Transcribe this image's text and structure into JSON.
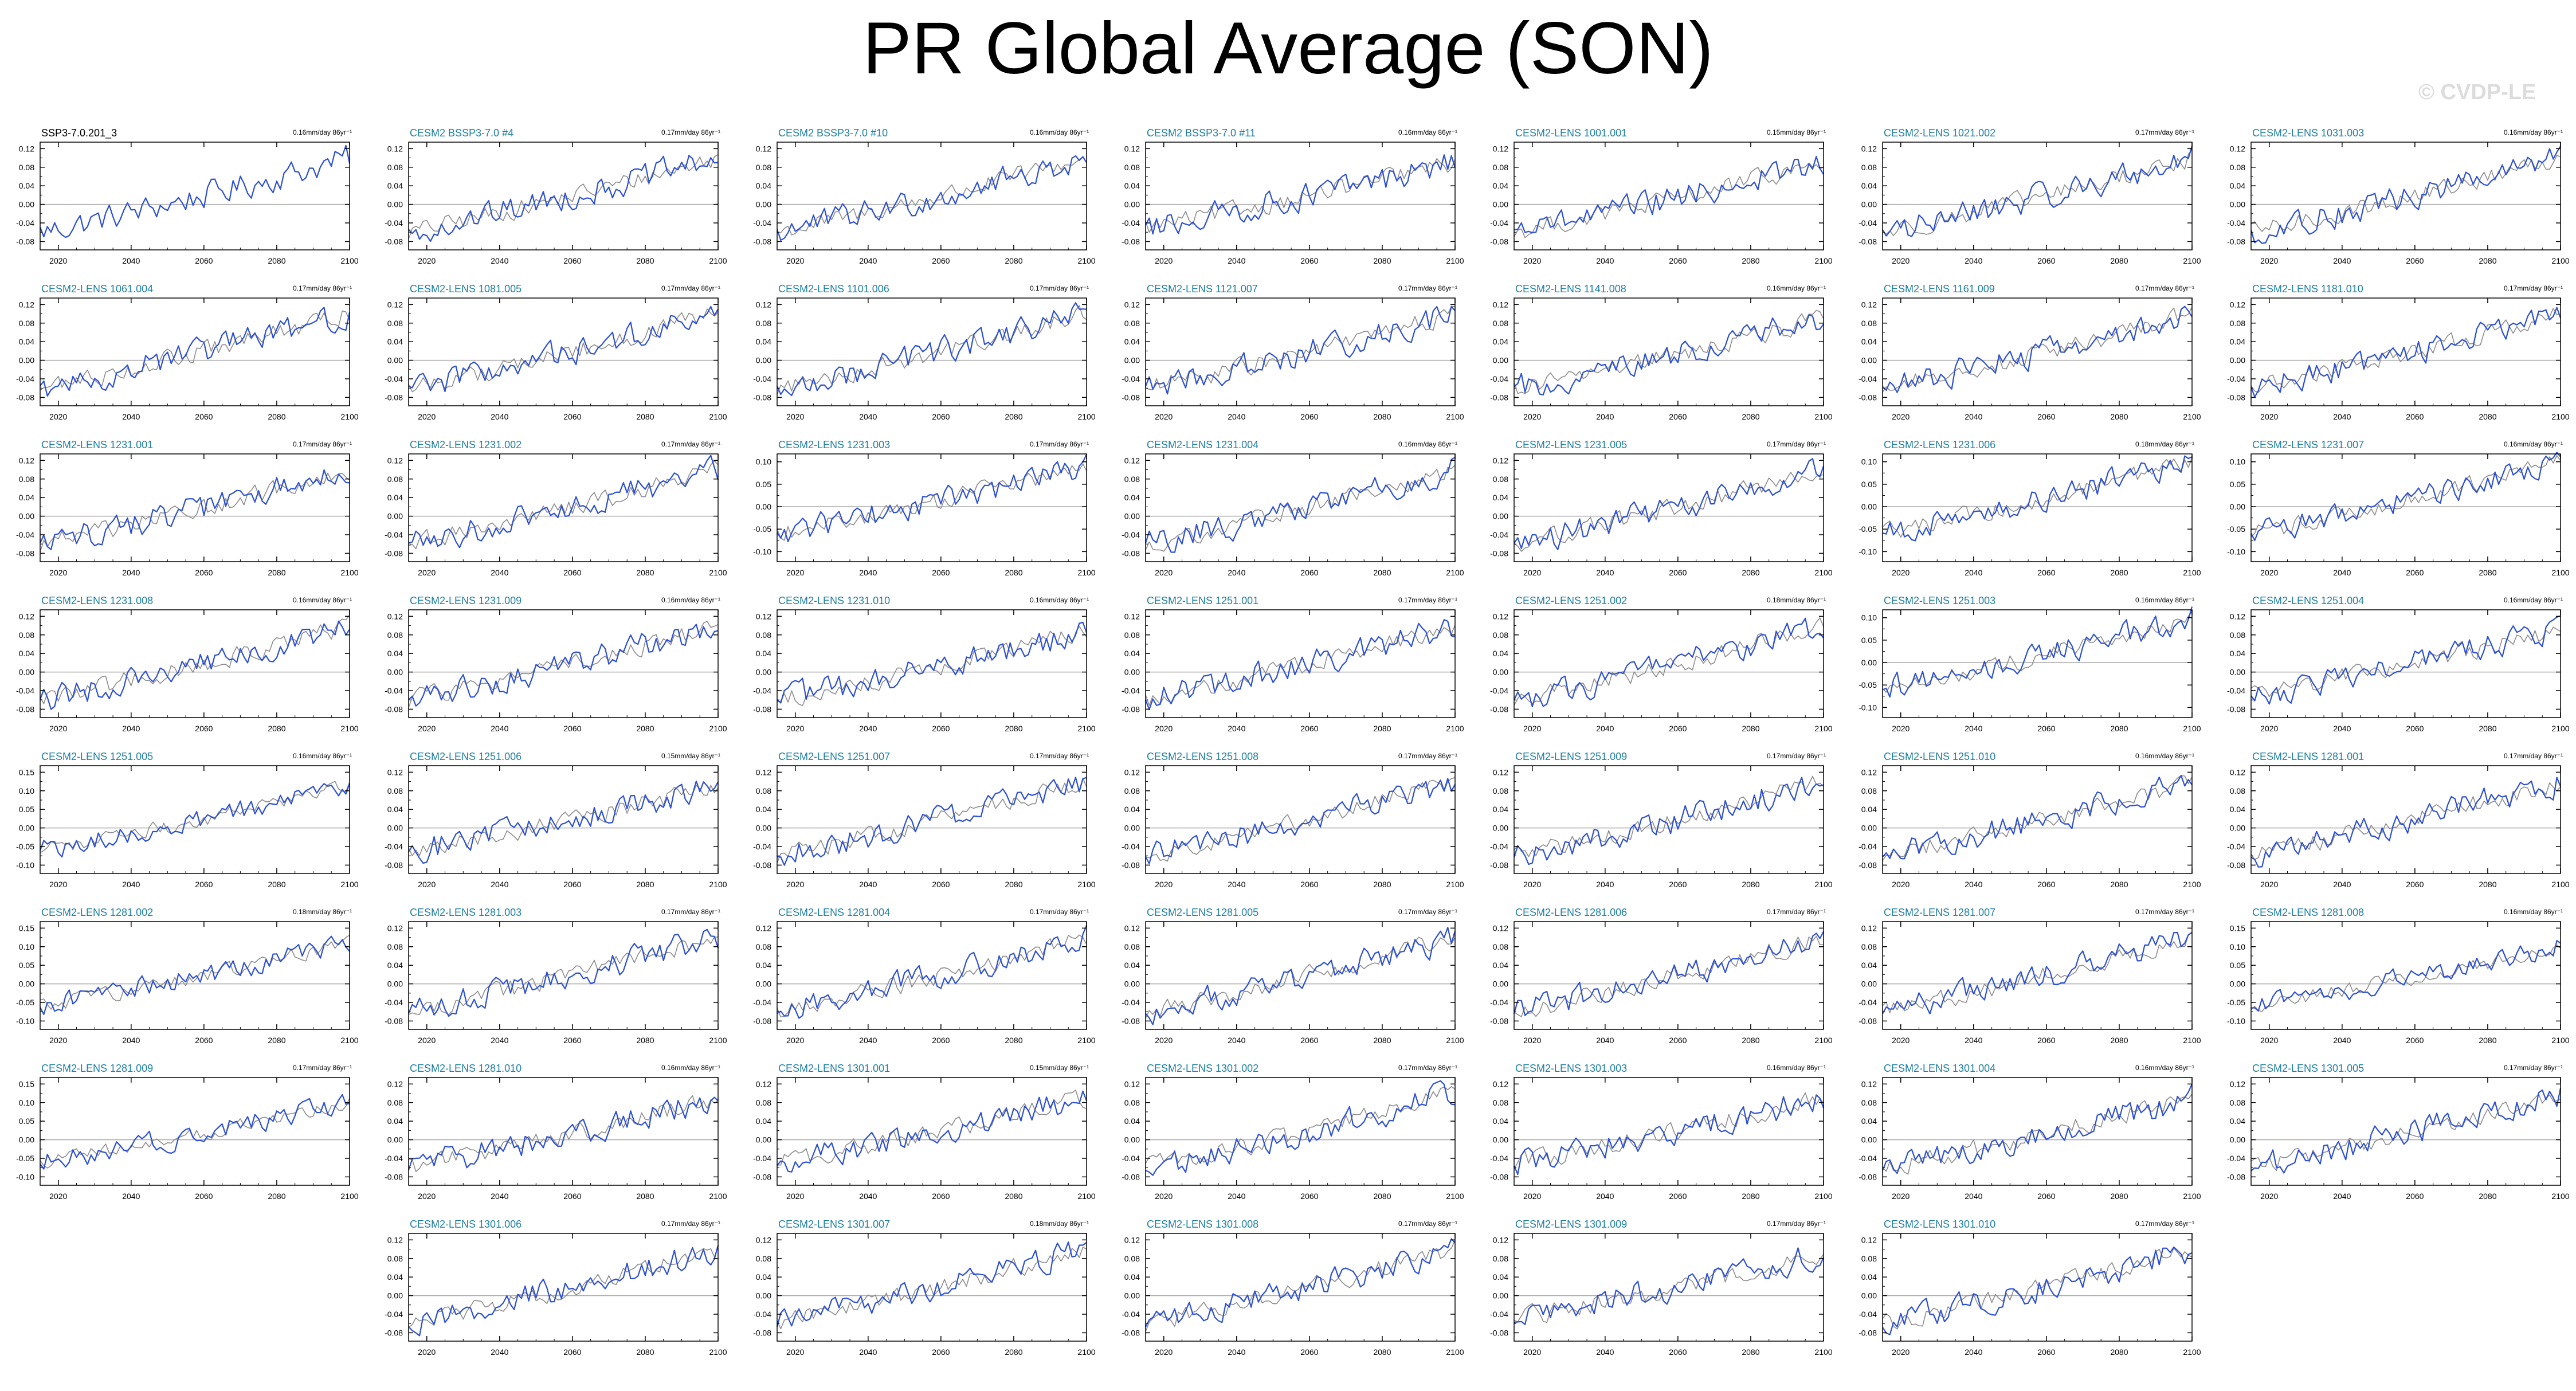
{
  "title": "PR Global Average (SON)",
  "watermark": "© CVDP-LE",
  "colors": {
    "model": "#2c4fd4",
    "obs": "#8c8c8c",
    "zero": "#aaaaaa",
    "title_blue": "#1e7fa3"
  },
  "chart_data": {
    "type": "line",
    "x_range": [
      2015,
      2100
    ],
    "x_ticks": [
      "2020",
      "2040",
      "2060",
      "2080",
      "2100"
    ],
    "series_note": "",
    "panels": [
      {
        "name": "SSP3-7.0.201_3",
        "trend": "0.16mm/day 86yr⁻¹",
        "yticks": [
          "0.12",
          "0.08",
          "0.04",
          "0.00",
          "-0.04",
          "-0.08"
        ],
        "start": -0.06,
        "end": 0.1,
        "first": true
      },
      {
        "name": "CESM2 BSSP3-7.0 #4",
        "trend": "0.17mm/day 86yr⁻¹",
        "yticks": [
          "0.12",
          "0.08",
          "0.04",
          "0.00",
          "-0.04",
          "-0.08"
        ],
        "start": -0.06,
        "end": 0.1
      },
      {
        "name": "CESM2 BSSP3-7.0 #10",
        "trend": "0.16mm/day 86yr⁻¹",
        "yticks": [
          "0.12",
          "0.08",
          "0.04",
          "0.00",
          "-0.04",
          "-0.08"
        ],
        "start": -0.06,
        "end": 0.1
      },
      {
        "name": "CESM2 BSSP3-7.0 #11",
        "trend": "0.16mm/day 86yr⁻¹",
        "yticks": [
          "0.12",
          "0.08",
          "0.04",
          "0.00",
          "-0.04",
          "-0.08"
        ],
        "start": -0.05,
        "end": 0.09
      },
      {
        "name": "CESM2-LENS 1001.001",
        "trend": "0.15mm/day 86yr⁻¹",
        "yticks": [
          "0.12",
          "0.08",
          "0.04",
          "0.00",
          "-0.04",
          "-0.08"
        ],
        "start": -0.06,
        "end": 0.09
      },
      {
        "name": "CESM2-LENS 1021.002",
        "trend": "0.17mm/day 86yr⁻¹",
        "yticks": [
          "0.12",
          "0.08",
          "0.04",
          "0.00",
          "-0.04",
          "-0.08"
        ],
        "start": -0.06,
        "end": 0.1
      },
      {
        "name": "CESM2-LENS 1031.003",
        "trend": "0.16mm/day 86yr⁻¹",
        "yticks": [
          "0.12",
          "0.08",
          "0.04",
          "0.00",
          "-0.04",
          "-0.08"
        ],
        "start": -0.06,
        "end": 0.1
      },
      {
        "name": "CESM2-LENS 1061.004",
        "trend": "0.17mm/day 86yr⁻¹",
        "yticks": [
          "0.12",
          "0.08",
          "0.04",
          "0.00",
          "-0.04",
          "-0.08"
        ],
        "start": -0.06,
        "end": 0.1
      },
      {
        "name": "CESM2-LENS 1081.005",
        "trend": "0.17mm/day 86yr⁻¹",
        "yticks": [
          "0.12",
          "0.08",
          "0.04",
          "0.00",
          "-0.04",
          "-0.08"
        ],
        "start": -0.06,
        "end": 0.1
      },
      {
        "name": "CESM2-LENS 1101.006",
        "trend": "0.17mm/day 86yr⁻¹",
        "yticks": [
          "0.12",
          "0.08",
          "0.04",
          "0.00",
          "-0.04",
          "-0.08"
        ],
        "start": -0.06,
        "end": 0.1
      },
      {
        "name": "CESM2-LENS 1121.007",
        "trend": "0.17mm/day 86yr⁻¹",
        "yticks": [
          "0.12",
          "0.08",
          "0.04",
          "0.00",
          "-0.04",
          "-0.08"
        ],
        "start": -0.06,
        "end": 0.1
      },
      {
        "name": "CESM2-LENS 1141.008",
        "trend": "0.16mm/day 86yr⁻¹",
        "yticks": [
          "0.12",
          "0.08",
          "0.04",
          "0.00",
          "-0.04",
          "-0.08"
        ],
        "start": -0.06,
        "end": 0.09
      },
      {
        "name": "CESM2-LENS 1161.009",
        "trend": "0.17mm/day 86yr⁻¹",
        "yticks": [
          "0.12",
          "0.08",
          "0.04",
          "0.00",
          "-0.04",
          "-0.08"
        ],
        "start": -0.06,
        "end": 0.1
      },
      {
        "name": "CESM2-LENS 1181.010",
        "trend": "0.17mm/day 86yr⁻¹",
        "yticks": [
          "0.12",
          "0.08",
          "0.04",
          "0.00",
          "-0.04",
          "-0.08"
        ],
        "start": -0.06,
        "end": 0.1
      },
      {
        "name": "CESM2-LENS 1231.001",
        "trend": "0.17mm/day 86yr⁻¹",
        "yticks": [
          "0.12",
          "0.08",
          "0.04",
          "0.00",
          "-0.04",
          "-0.08"
        ],
        "start": -0.06,
        "end": 0.1
      },
      {
        "name": "CESM2-LENS 1231.002",
        "trend": "0.17mm/day 86yr⁻¹",
        "yticks": [
          "0.12",
          "0.08",
          "0.04",
          "0.00",
          "-0.04",
          "-0.08"
        ],
        "start": -0.06,
        "end": 0.1
      },
      {
        "name": "CESM2-LENS 1231.003",
        "trend": "0.17mm/day 86yr⁻¹",
        "yticks": [
          "0.10",
          "0.05",
          "0.00",
          "-0.05",
          "-0.10"
        ],
        "start": -0.06,
        "end": 0.09
      },
      {
        "name": "CESM2-LENS 1231.004",
        "trend": "0.16mm/day 86yr⁻¹",
        "yticks": [
          "0.12",
          "0.08",
          "0.04",
          "0.00",
          "-0.04",
          "-0.08"
        ],
        "start": -0.06,
        "end": 0.1
      },
      {
        "name": "CESM2-LENS 1231.005",
        "trend": "0.17mm/day 86yr⁻¹",
        "yticks": [
          "0.12",
          "0.08",
          "0.04",
          "0.00",
          "-0.04",
          "-0.08"
        ],
        "start": -0.06,
        "end": 0.1
      },
      {
        "name": "CESM2-LENS 1231.006",
        "trend": "0.18mm/day 86yr⁻¹",
        "yticks": [
          "0.10",
          "0.05",
          "0.00",
          "-0.05",
          "-0.10"
        ],
        "start": -0.06,
        "end": 0.1
      },
      {
        "name": "CESM2-LENS 1231.007",
        "trend": "0.16mm/day 86yr⁻¹",
        "yticks": [
          "0.10",
          "0.05",
          "0.00",
          "-0.05",
          "-0.10"
        ],
        "start": -0.06,
        "end": 0.1
      },
      {
        "name": "CESM2-LENS 1231.008",
        "trend": "0.16mm/day 86yr⁻¹",
        "yticks": [
          "0.12",
          "0.08",
          "0.04",
          "0.00",
          "-0.04",
          "-0.08"
        ],
        "start": -0.06,
        "end": 0.1
      },
      {
        "name": "CESM2-LENS 1231.009",
        "trend": "0.16mm/day 86yr⁻¹",
        "yticks": [
          "0.12",
          "0.08",
          "0.04",
          "0.00",
          "-0.04",
          "-0.08"
        ],
        "start": -0.06,
        "end": 0.1
      },
      {
        "name": "CESM2-LENS 1231.010",
        "trend": "0.16mm/day 86yr⁻¹",
        "yticks": [
          "0.12",
          "0.08",
          "0.04",
          "0.00",
          "-0.04",
          "-0.08"
        ],
        "start": -0.06,
        "end": 0.09
      },
      {
        "name": "CESM2-LENS 1251.001",
        "trend": "0.17mm/day 86yr⁻¹",
        "yticks": [
          "0.12",
          "0.08",
          "0.04",
          "0.00",
          "-0.04",
          "-0.08"
        ],
        "start": -0.06,
        "end": 0.1
      },
      {
        "name": "CESM2-LENS 1251.002",
        "trend": "0.18mm/day 86yr⁻¹",
        "yticks": [
          "0.12",
          "0.08",
          "0.04",
          "0.00",
          "-0.04",
          "-0.08"
        ],
        "start": -0.06,
        "end": 0.1
      },
      {
        "name": "CESM2-LENS 1251.003",
        "trend": "0.16mm/day 86yr⁻¹",
        "yticks": [
          "0.10",
          "0.05",
          "0.00",
          "-0.05",
          "-0.10"
        ],
        "start": -0.06,
        "end": 0.1
      },
      {
        "name": "CESM2-LENS 1251.004",
        "trend": "0.16mm/day 86yr⁻¹",
        "yticks": [
          "0.12",
          "0.08",
          "0.04",
          "0.00",
          "-0.04",
          "-0.08"
        ],
        "start": -0.05,
        "end": 0.09
      },
      {
        "name": "CESM2-LENS 1251.005",
        "trend": "0.16mm/day 86yr⁻¹",
        "yticks": [
          "0.15",
          "0.10",
          "0.05",
          "0.00",
          "-0.05",
          "-0.10"
        ],
        "start": -0.06,
        "end": 0.11
      },
      {
        "name": "CESM2-LENS 1251.006",
        "trend": "0.15mm/day 86yr⁻¹",
        "yticks": [
          "0.12",
          "0.08",
          "0.04",
          "0.00",
          "-0.04",
          "-0.08"
        ],
        "start": -0.05,
        "end": 0.09
      },
      {
        "name": "CESM2-LENS 1251.007",
        "trend": "0.17mm/day 86yr⁻¹",
        "yticks": [
          "0.12",
          "0.08",
          "0.04",
          "0.00",
          "-0.04",
          "-0.08"
        ],
        "start": -0.06,
        "end": 0.1
      },
      {
        "name": "CESM2-LENS 1251.008",
        "trend": "0.17mm/day 86yr⁻¹",
        "yticks": [
          "0.12",
          "0.08",
          "0.04",
          "0.00",
          "-0.04",
          "-0.08"
        ],
        "start": -0.06,
        "end": 0.1
      },
      {
        "name": "CESM2-LENS 1251.009",
        "trend": "0.17mm/day 86yr⁻¹",
        "yticks": [
          "0.12",
          "0.08",
          "0.04",
          "0.00",
          "-0.04",
          "-0.08"
        ],
        "start": -0.06,
        "end": 0.1
      },
      {
        "name": "CESM2-LENS 1251.010",
        "trend": "0.16mm/day 86yr⁻¹",
        "yticks": [
          "0.12",
          "0.08",
          "0.04",
          "0.00",
          "-0.04",
          "-0.08"
        ],
        "start": -0.06,
        "end": 0.1
      },
      {
        "name": "CESM2-LENS 1281.001",
        "trend": "0.17mm/day 86yr⁻¹",
        "yticks": [
          "0.12",
          "0.08",
          "0.04",
          "0.00",
          "-0.04",
          "-0.08"
        ],
        "start": -0.06,
        "end": 0.1
      },
      {
        "name": "CESM2-LENS 1281.002",
        "trend": "0.18mm/day 86yr⁻¹",
        "yticks": [
          "0.15",
          "0.10",
          "0.05",
          "0.00",
          "-0.05",
          "-0.10"
        ],
        "start": -0.06,
        "end": 0.11
      },
      {
        "name": "CESM2-LENS 1281.003",
        "trend": "0.17mm/day 86yr⁻¹",
        "yticks": [
          "0.12",
          "0.08",
          "0.04",
          "0.00",
          "-0.04",
          "-0.08"
        ],
        "start": -0.06,
        "end": 0.1
      },
      {
        "name": "CESM2-LENS 1281.004",
        "trend": "0.17mm/day 86yr⁻¹",
        "yticks": [
          "0.12",
          "0.08",
          "0.04",
          "0.00",
          "-0.04",
          "-0.08"
        ],
        "start": -0.06,
        "end": 0.1
      },
      {
        "name": "CESM2-LENS 1281.005",
        "trend": "0.17mm/day 86yr⁻¹",
        "yticks": [
          "0.12",
          "0.08",
          "0.04",
          "0.00",
          "-0.04",
          "-0.08"
        ],
        "start": -0.06,
        "end": 0.1
      },
      {
        "name": "CESM2-LENS 1281.006",
        "trend": "0.17mm/day 86yr⁻¹",
        "yticks": [
          "0.12",
          "0.08",
          "0.04",
          "0.00",
          "-0.04",
          "-0.08"
        ],
        "start": -0.06,
        "end": 0.1
      },
      {
        "name": "CESM2-LENS 1281.007",
        "trend": "0.17mm/day 86yr⁻¹",
        "yticks": [
          "0.12",
          "0.08",
          "0.04",
          "0.00",
          "-0.04",
          "-0.08"
        ],
        "start": -0.06,
        "end": 0.1
      },
      {
        "name": "CESM2-LENS 1281.008",
        "trend": "0.16mm/day 86yr⁻¹",
        "yticks": [
          "0.15",
          "0.10",
          "0.05",
          "0.00",
          "-0.05",
          "-0.10"
        ],
        "start": -0.06,
        "end": 0.1
      },
      {
        "name": "CESM2-LENS 1281.009",
        "trend": "0.17mm/day 86yr⁻¹",
        "yticks": [
          "0.15",
          "0.10",
          "0.05",
          "0.00",
          "-0.05",
          "-0.10"
        ],
        "start": -0.06,
        "end": 0.1
      },
      {
        "name": "CESM2-LENS 1281.010",
        "trend": "0.16mm/day 86yr⁻¹",
        "yticks": [
          "0.12",
          "0.08",
          "0.04",
          "0.00",
          "-0.04",
          "-0.08"
        ],
        "start": -0.06,
        "end": 0.09
      },
      {
        "name": "CESM2-LENS 1301.001",
        "trend": "0.15mm/day 86yr⁻¹",
        "yticks": [
          "0.12",
          "0.08",
          "0.04",
          "0.00",
          "-0.04",
          "-0.08"
        ],
        "start": -0.05,
        "end": 0.09
      },
      {
        "name": "CESM2-LENS 1301.002",
        "trend": "0.17mm/day 86yr⁻¹",
        "yticks": [
          "0.12",
          "0.08",
          "0.04",
          "0.00",
          "-0.04",
          "-0.08"
        ],
        "start": -0.06,
        "end": 0.1
      },
      {
        "name": "CESM2-LENS 1301.003",
        "trend": "0.16mm/day 86yr⁻¹",
        "yticks": [
          "0.12",
          "0.08",
          "0.04",
          "0.00",
          "-0.04",
          "-0.08"
        ],
        "start": -0.05,
        "end": 0.09
      },
      {
        "name": "CESM2-LENS 1301.004",
        "trend": "0.16mm/day 86yr⁻¹",
        "yticks": [
          "0.12",
          "0.08",
          "0.04",
          "0.00",
          "-0.04",
          "-0.08"
        ],
        "start": -0.06,
        "end": 0.09
      },
      {
        "name": "CESM2-LENS 1301.005",
        "trend": "0.17mm/day 86yr⁻¹",
        "yticks": [
          "0.12",
          "0.08",
          "0.04",
          "0.00",
          "-0.04",
          "-0.08"
        ],
        "start": -0.06,
        "end": 0.1
      },
      {
        "name": "CESM2-LENS 1301.006",
        "trend": "0.17mm/day 86yr⁻¹",
        "yticks": [
          "0.12",
          "0.08",
          "0.04",
          "0.00",
          "-0.04",
          "-0.08"
        ],
        "start": -0.06,
        "end": 0.1,
        "slot": 1
      },
      {
        "name": "CESM2-LENS 1301.007",
        "trend": "0.18mm/day 86yr⁻¹",
        "yticks": [
          "0.12",
          "0.08",
          "0.04",
          "0.00",
          "-0.04",
          "-0.08"
        ],
        "start": -0.06,
        "end": 0.1
      },
      {
        "name": "CESM2-LENS 1301.008",
        "trend": "0.17mm/day 86yr⁻¹",
        "yticks": [
          "0.12",
          "0.08",
          "0.04",
          "0.00",
          "-0.04",
          "-0.08"
        ],
        "start": -0.06,
        "end": 0.1
      },
      {
        "name": "CESM2-LENS 1301.009",
        "trend": "0.17mm/day 86yr⁻¹",
        "yticks": [
          "0.12",
          "0.08",
          "0.04",
          "0.00",
          "-0.04",
          "-0.08"
        ],
        "start": -0.05,
        "end": 0.09
      },
      {
        "name": "CESM2-LENS 1301.010",
        "trend": "0.17mm/day 86yr⁻¹",
        "yticks": [
          "0.12",
          "0.08",
          "0.04",
          "0.00",
          "-0.04",
          "-0.08"
        ],
        "start": -0.06,
        "end": 0.1
      }
    ]
  }
}
